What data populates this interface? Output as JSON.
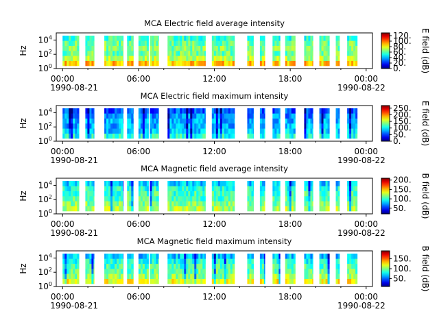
{
  "figure": {
    "x_ticks": [
      "00:00",
      "06:00",
      "12:00",
      "18:00",
      "00:00"
    ],
    "x_tick_hours": [
      0,
      6,
      12,
      18,
      24
    ],
    "x_range_hours": [
      -0.5,
      24.5
    ],
    "date_start": "1990-08-21",
    "date_end": "1990-08-22",
    "y_label": "Hz",
    "y_scale": "log",
    "y_ticks": [
      "10^0",
      "10^2",
      "10^4"
    ],
    "colormap": "jet",
    "data_segments_hours": [
      [
        0.0,
        1.3
      ],
      [
        1.8,
        2.5
      ],
      [
        3.3,
        4.8
      ],
      [
        5.1,
        5.6
      ],
      [
        6.0,
        6.8
      ],
      [
        6.9,
        7.6
      ],
      [
        8.3,
        11.3
      ],
      [
        11.8,
        13.6
      ],
      [
        14.6,
        15.1
      ],
      [
        15.6,
        16.0
      ],
      [
        16.6,
        17.2
      ],
      [
        17.6,
        18.4
      ],
      [
        19.1,
        19.8
      ],
      [
        20.3,
        21.1
      ],
      [
        21.6,
        21.9
      ],
      [
        22.5,
        23.3
      ]
    ]
  },
  "chart_data": [
    {
      "type": "heatmap",
      "title": "MCA  Electric field average intensity",
      "xlabel": "",
      "ylabel": "Hz",
      "colorbar_label": "E field (dB)",
      "colorbar_ticks": [
        "120.",
        "100.",
        "80.",
        "60.",
        "40.",
        "20.",
        "0."
      ],
      "colorbar_values": [
        120,
        100,
        80,
        60,
        40,
        20,
        0
      ],
      "zlim": [
        0,
        130
      ],
      "mean_profile_low_to_high": [
        0.68,
        0.55,
        0.48,
        0.5,
        0.48,
        0.42
      ],
      "x_range": [
        "1990-08-21 00:00",
        "1990-08-22 00:00"
      ]
    },
    {
      "type": "heatmap",
      "title": "MCA  Electric field maximum intensity",
      "xlabel": "",
      "ylabel": "Hz",
      "colorbar_label": "E field (dB)",
      "colorbar_ticks": [
        "250.",
        "200.",
        "150.",
        "100.",
        "50.",
        "0."
      ],
      "colorbar_values": [
        250,
        200,
        150,
        100,
        50,
        0
      ],
      "zlim": [
        0,
        270
      ],
      "mean_profile_low_to_high": [
        0.4,
        0.33,
        0.3,
        0.3,
        0.26,
        0.2
      ],
      "x_range": [
        "1990-08-21 00:00",
        "1990-08-22 00:00"
      ]
    },
    {
      "type": "heatmap",
      "title": "MCA  Magnetic field average intensity",
      "xlabel": "",
      "ylabel": "Hz",
      "colorbar_label": "B field (dB)",
      "colorbar_ticks": [
        "200.",
        "150.",
        "100.",
        "50."
      ],
      "colorbar_values": [
        200,
        150,
        100,
        50
      ],
      "zlim": [
        20,
        210
      ],
      "mean_profile_low_to_high": [
        0.55,
        0.5,
        0.45,
        0.44,
        0.4,
        0.33
      ],
      "x_range": [
        "1990-08-21 00:00",
        "1990-08-22 00:00"
      ]
    },
    {
      "type": "heatmap",
      "title": "MCA  Magnetic field maximum intensity",
      "xlabel": "",
      "ylabel": "Hz",
      "colorbar_label": "B field (dB)",
      "colorbar_ticks": [
        "150.",
        "100.",
        "50."
      ],
      "colorbar_values": [
        150,
        100,
        50
      ],
      "zlim": [
        10,
        190
      ],
      "mean_profile_low_to_high": [
        0.62,
        0.52,
        0.47,
        0.44,
        0.4,
        0.32
      ],
      "x_range": [
        "1990-08-21 00:00",
        "1990-08-22 00:00"
      ]
    }
  ]
}
